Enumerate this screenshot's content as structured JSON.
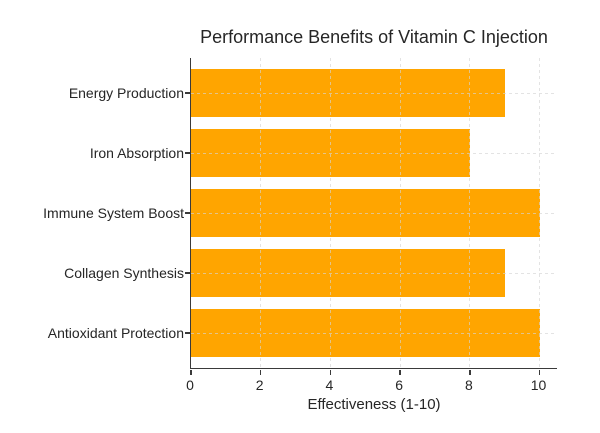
{
  "chart_data": {
    "type": "bar",
    "orientation": "horizontal",
    "title": "Performance Benefits of Vitamin C Injection",
    "xlabel": "Effectiveness (1-10)",
    "ylabel": "",
    "categories": [
      "Energy Production",
      "Iron Absorption",
      "Immune System Boost",
      "Collagen Synthesis",
      "Antioxidant Protection"
    ],
    "values": [
      9,
      8,
      10,
      9,
      10
    ],
    "xlim": [
      0,
      10.5
    ],
    "xticks": [
      0,
      2,
      4,
      6,
      8,
      10
    ],
    "grid": "dashed, horizontal and vertical, drawn over bars",
    "legend": "none",
    "bar_color": "#FFA500",
    "grid_color": "#d4d4d4",
    "axis_color": "#3a3a3a",
    "text_color": "#262626",
    "background_color": "#ffffff"
  }
}
